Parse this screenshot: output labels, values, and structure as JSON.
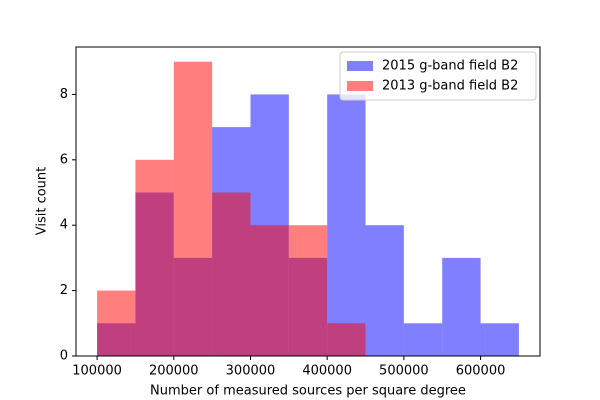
{
  "chart_data": {
    "type": "histogram",
    "xlabel": "Number of measured sources per square degree",
    "ylabel": "Visit count",
    "series": [
      {
        "name": "2015 g-band field B2",
        "color": "#0000ff",
        "alpha": 0.5,
        "bins": [
          100000,
          150000,
          200000,
          250000,
          300000,
          350000,
          400000,
          450000,
          500000,
          550000,
          600000,
          650000
        ],
        "values": [
          1,
          5,
          3,
          7,
          8,
          3,
          8,
          4,
          1,
          3,
          1
        ]
      },
      {
        "name": "2013 g-band field B2",
        "color": "#ff0000",
        "alpha": 0.5,
        "bins": [
          100000,
          150000,
          200000,
          250000,
          300000,
          350000,
          400000,
          450000
        ],
        "values": [
          2,
          6,
          9,
          5,
          4,
          4,
          1
        ]
      }
    ],
    "xlim": [
      72500,
      677500
    ],
    "ylim": [
      0,
      9.45
    ],
    "xticks": [
      100000,
      200000,
      300000,
      400000,
      500000,
      600000
    ],
    "yticks": [
      0,
      2,
      4,
      6,
      8
    ],
    "legend": "upper right"
  }
}
